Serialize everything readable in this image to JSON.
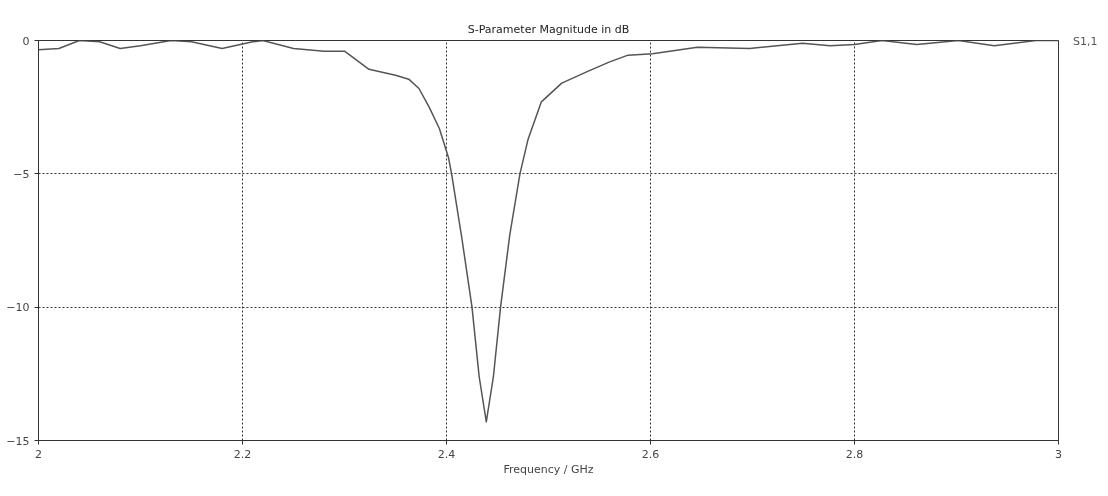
{
  "chart_data": {
    "type": "line",
    "title": "S-Parameter Magnitude in dB",
    "xlabel": "Frequency / GHz",
    "x": [
      2.0,
      2.02,
      2.04,
      2.06,
      2.08,
      2.1,
      2.13,
      2.15,
      2.18,
      2.21,
      2.22,
      2.25,
      2.28,
      2.3,
      2.324,
      2.35,
      2.363,
      2.373,
      2.383,
      2.393,
      2.402,
      2.405,
      2.415,
      2.425,
      2.432,
      2.439,
      2.446,
      2.453,
      2.462,
      2.472,
      2.48,
      2.493,
      2.513,
      2.539,
      2.56,
      2.578,
      2.602,
      2.646,
      2.697,
      2.749,
      2.776,
      2.8,
      2.827,
      2.861,
      2.902,
      2.937,
      2.978,
      3.0
    ],
    "series": [
      {
        "name": "S1,1",
        "color": "#555555",
        "values": [
          -0.35,
          -0.3,
          0,
          -0.05,
          -0.3,
          -0.2,
          0,
          -0.05,
          -0.3,
          -0.05,
          0,
          -0.3,
          -0.4,
          -0.4,
          -1.08,
          -1.3,
          -1.45,
          -1.8,
          -2.5,
          -3.3,
          -4.4,
          -5,
          -7.4,
          -10,
          -12.6,
          -14.3,
          -12.6,
          -10,
          -7.3,
          -5,
          -3.7,
          -2.3,
          -1.6,
          -1.15,
          -0.8,
          -0.55,
          -0.5,
          -0.25,
          -0.3,
          -0.1,
          -0.2,
          -0.15,
          0,
          -0.15,
          0,
          -0.2,
          0,
          0
        ]
      }
    ],
    "xlim": [
      2,
      3
    ],
    "ylim": [
      -15,
      0
    ],
    "xticks": [
      2,
      2.2,
      2.4,
      2.6,
      2.8,
      3
    ],
    "yticks": [
      -15,
      -10,
      -5,
      0
    ],
    "grid": true,
    "line_style": "solid",
    "marker": "none",
    "legend": false
  }
}
